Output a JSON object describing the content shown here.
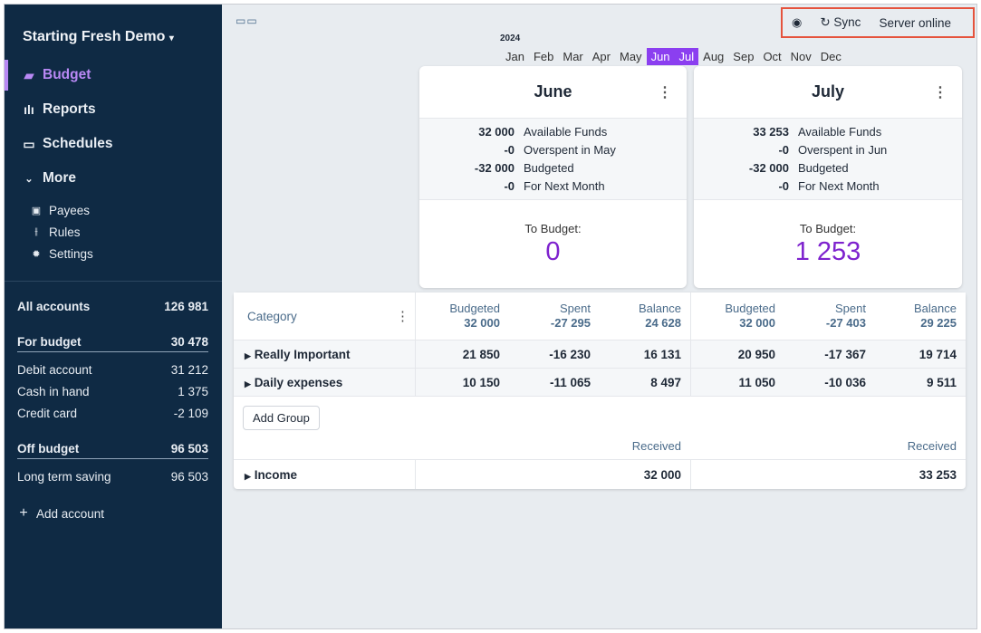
{
  "sidebar": {
    "title": "Starting Fresh Demo",
    "nav": [
      {
        "label": "Budget",
        "icon": "wallet-icon"
      },
      {
        "label": "Reports",
        "icon": "bar-chart-icon"
      },
      {
        "label": "Schedules",
        "icon": "calendar-icon"
      },
      {
        "label": "More",
        "icon": "chevron-down-icon"
      }
    ],
    "sub": [
      {
        "label": "Payees",
        "icon": "store-icon"
      },
      {
        "label": "Rules",
        "icon": "sliders-icon"
      },
      {
        "label": "Settings",
        "icon": "gear-icon"
      }
    ],
    "accounts": {
      "all": {
        "name": "All accounts",
        "value": "126 981"
      },
      "for_budget": {
        "name": "For budget",
        "value": "30 478"
      },
      "budget_accounts": [
        {
          "name": "Debit account",
          "value": "31 212"
        },
        {
          "name": "Cash in hand",
          "value": "1 375"
        },
        {
          "name": "Credit card",
          "value": "-2 109"
        }
      ],
      "off_budget": {
        "name": "Off budget",
        "value": "96 503"
      },
      "off_accounts": [
        {
          "name": "Long term saving",
          "value": "96 503"
        }
      ]
    },
    "add_account": "Add account"
  },
  "topbar": {
    "sync": "Sync",
    "server": "Server online"
  },
  "months": {
    "year": "2024",
    "list": [
      "Jan",
      "Feb",
      "Mar",
      "Apr",
      "May",
      "Jun",
      "Jul",
      "Aug",
      "Sep",
      "Oct",
      "Nov",
      "Dec"
    ],
    "selected": [
      "Jun",
      "Jul"
    ]
  },
  "cards": [
    {
      "month": "June",
      "rows": [
        [
          "32 000",
          "Available Funds"
        ],
        [
          "-0",
          "Overspent in May"
        ],
        [
          "-32 000",
          "Budgeted"
        ],
        [
          "-0",
          "For Next Month"
        ]
      ],
      "to_budget_label": "To Budget:",
      "to_budget": "0"
    },
    {
      "month": "July",
      "rows": [
        [
          "33 253",
          "Available Funds"
        ],
        [
          "-0",
          "Overspent in Jun"
        ],
        [
          "-32 000",
          "Budgeted"
        ],
        [
          "-0",
          "For Next Month"
        ]
      ],
      "to_budget_label": "To Budget:",
      "to_budget": "1 253"
    }
  ],
  "table": {
    "category_header": "Category",
    "month_headers": [
      [
        [
          "Budgeted",
          "32 000"
        ],
        [
          "Spent",
          "-27 295"
        ],
        [
          "Balance",
          "24 628"
        ]
      ],
      [
        [
          "Budgeted",
          "32 000"
        ],
        [
          "Spent",
          "-27 403"
        ],
        [
          "Balance",
          "29 225"
        ]
      ]
    ],
    "groups": [
      {
        "name": "Really Important",
        "values": [
          [
            "21 850",
            "-16 230",
            "16 131"
          ],
          [
            "20 950",
            "-17 367",
            "19 714"
          ]
        ]
      },
      {
        "name": "Daily expenses",
        "values": [
          [
            "10 150",
            "-11 065",
            "8 497"
          ],
          [
            "11 050",
            "-10 036",
            "9 511"
          ]
        ]
      }
    ],
    "add_group": "Add Group",
    "received_label": "Received",
    "income": {
      "name": "Income",
      "values": [
        "32 000",
        "33 253"
      ]
    }
  }
}
